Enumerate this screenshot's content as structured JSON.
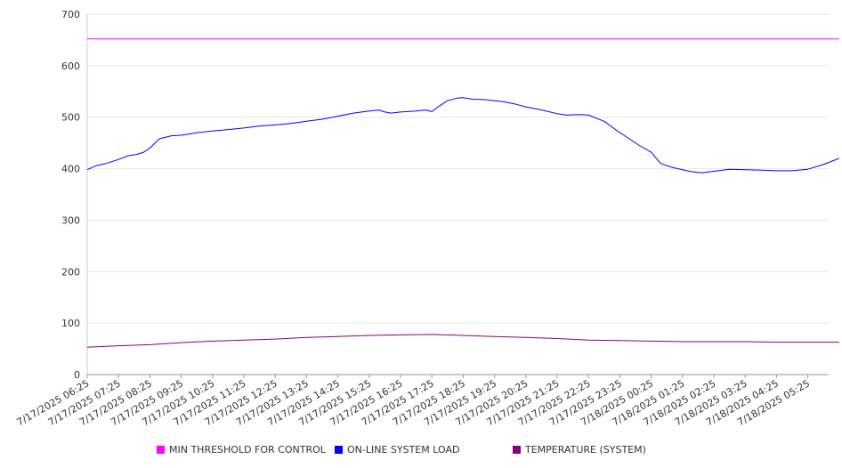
{
  "chart_data": {
    "type": "line",
    "title": "",
    "xlabel": "",
    "ylabel": "",
    "ylim": [
      0,
      700
    ],
    "y_ticks": [
      0,
      100,
      200,
      300,
      400,
      500,
      600,
      700
    ],
    "grid": "horizontal",
    "legend_position": "bottom",
    "categories": [
      "7/17/2025 06:25",
      "7/17/2025 07:25",
      "7/17/2025 08:25",
      "7/17/2025 09:25",
      "7/17/2025 10:25",
      "7/17/2025 11:25",
      "7/17/2025 12:25",
      "7/17/2025 13:25",
      "7/17/2025 14:25",
      "7/17/2025 15:25",
      "7/17/2025 16:25",
      "7/17/2025 17:25",
      "7/17/2025 18:25",
      "7/17/2025 19:25",
      "7/17/2025 20:25",
      "7/17/2025 21:25",
      "7/17/2025 22:25",
      "7/17/2025 23:25",
      "7/18/2025 00:25",
      "7/18/2025 01:25",
      "7/18/2025 02:25",
      "7/18/2025 03:25",
      "7/18/2025 04:25",
      "7/18/2025 05:25"
    ],
    "series": [
      {
        "name": "MIN THRESHOLD FOR CONTROL",
        "color": "#ff00ff",
        "x": [
          0,
          24
        ],
        "values": [
          652,
          652
        ]
      },
      {
        "name": "ON-LINE SYSTEM LOAD",
        "color": "#0000ff",
        "x": [
          0,
          0.3,
          0.6,
          1,
          1.3,
          1.6,
          1.8,
          2,
          2.3,
          2.7,
          3,
          3.5,
          4,
          4.5,
          5,
          5.5,
          6,
          6.5,
          7,
          7.5,
          8,
          8.5,
          9,
          9.3,
          9.5,
          9.7,
          10,
          10.5,
          10.8,
          11,
          11.2,
          11.5,
          11.8,
          12,
          12.3,
          12.7,
          13,
          13.3,
          13.7,
          14,
          14.5,
          15,
          15.3,
          15.7,
          16,
          16.5,
          17,
          17.3,
          17.6,
          18,
          18.3,
          18.7,
          19,
          19.3,
          19.6,
          20,
          20.5,
          21,
          21.5,
          22,
          22.5,
          23,
          23.5,
          24
        ],
        "values": [
          398,
          406,
          410,
          418,
          425,
          428,
          432,
          440,
          458,
          464,
          465,
          470,
          473,
          476,
          479,
          483,
          485,
          488,
          492,
          496,
          502,
          508,
          512,
          514,
          510,
          508,
          510,
          512,
          514,
          511,
          520,
          532,
          537,
          538,
          535,
          534,
          532,
          530,
          525,
          520,
          514,
          507,
          504,
          505,
          504,
          492,
          470,
          458,
          446,
          432,
          410,
          402,
          398,
          394,
          392,
          395,
          399,
          398,
          397,
          396,
          396,
          399,
          408,
          420
        ]
      },
      {
        "name": "TEMPERATURE (SYSTEM)",
        "color": "#800080",
        "x": [
          0,
          1,
          2,
          3,
          4,
          5,
          6,
          7,
          8,
          9,
          10,
          11,
          12,
          13,
          14,
          15,
          16,
          17,
          18,
          19,
          20,
          21,
          22,
          23,
          24
        ],
        "values": [
          53,
          56,
          58,
          62,
          65,
          67,
          69,
          72,
          74,
          76,
          77,
          78,
          76,
          74,
          72,
          70,
          67,
          66,
          65,
          64,
          64,
          64,
          63,
          63,
          63
        ]
      }
    ]
  }
}
